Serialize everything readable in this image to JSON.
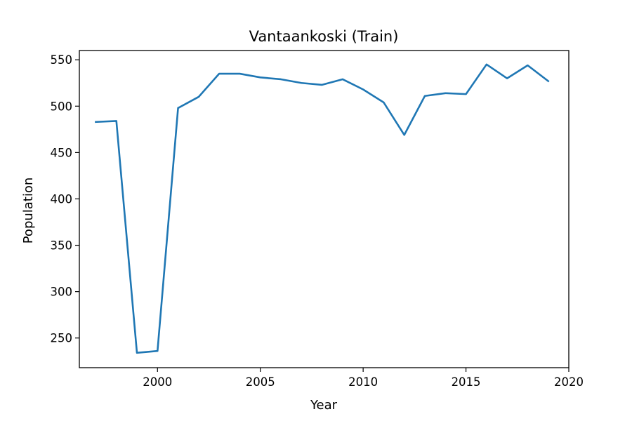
{
  "chart_data": {
    "type": "line",
    "title": "Vantaankoski (Train)",
    "xlabel": "Year",
    "ylabel": "Population",
    "xlim": [
      1996.2,
      2020.0
    ],
    "ylim": [
      218,
      560
    ],
    "xticks": [
      2000,
      2005,
      2010,
      2015,
      2020
    ],
    "yticks": [
      250,
      300,
      350,
      400,
      450,
      500,
      550
    ],
    "grid": false,
    "series": [
      {
        "color": "#1f77b4",
        "x": [
          1997,
          1998,
          1999,
          2000,
          2001,
          2002,
          2003,
          2004,
          2005,
          2006,
          2007,
          2008,
          2009,
          2010,
          2011,
          2012,
          2013,
          2014,
          2015,
          2016,
          2017,
          2018,
          2019
        ],
        "y": [
          483,
          484,
          234,
          236,
          498,
          510,
          535,
          535,
          531,
          529,
          525,
          523,
          529,
          518,
          504,
          469,
          511,
          514,
          513,
          545,
          530,
          544,
          527
        ]
      }
    ]
  }
}
